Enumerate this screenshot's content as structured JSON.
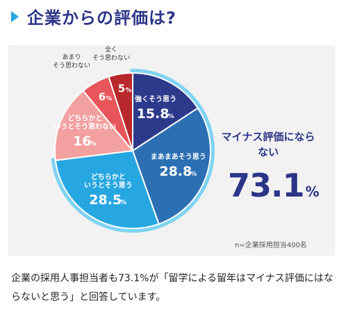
{
  "header": {
    "title": "企業からの評価は?"
  },
  "chart_data": {
    "type": "pie",
    "slices": [
      {
        "label": "強くそう思う",
        "value": 15.8,
        "value_text": "15.8",
        "unit": "%",
        "color": "#2d3a8c"
      },
      {
        "label": "まあまあそう思う",
        "value": 28.8,
        "value_text": "28.8",
        "unit": "%",
        "color": "#2c6fb3"
      },
      {
        "label": "どちらかというとそう思う",
        "value": 28.5,
        "value_text": "28.5",
        "unit": "%",
        "color": "#27a7e1"
      },
      {
        "label": "どちらかというとそう思わない",
        "value": 16,
        "value_text": "16",
        "unit": "%",
        "color": "#f3a0a0"
      },
      {
        "label": "あまりそう思わない",
        "value": 6,
        "value_text": "6",
        "unit": "%",
        "color": "#e8555a"
      },
      {
        "label": "全くそう思わない",
        "value": 5,
        "value_text": "5",
        "unit": "%",
        "color": "#b8282c"
      }
    ],
    "highlight_color": "#7fd3f2",
    "highlighted_slices": [
      0,
      1,
      2
    ]
  },
  "summary": {
    "label": "マイナス評価にならない",
    "value": "73.1",
    "unit": "%"
  },
  "note": "n=企業採用担当400名",
  "description": "企業の採用人事担当者も73.1%が「留学による留年はマイナス評価にはならないと思う」と回答しています。"
}
